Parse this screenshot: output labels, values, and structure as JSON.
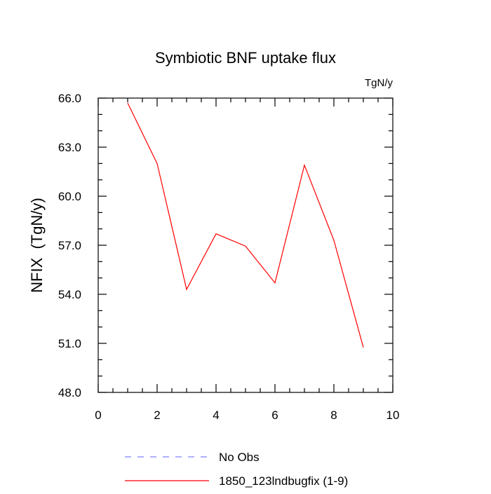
{
  "chart_data": {
    "type": "line",
    "title": "Symbiotic BNF uptake flux",
    "units": "TgN/y",
    "ylabel": "NFIX  (TgN/y)",
    "xlabel": "",
    "xlim": [
      0,
      10
    ],
    "ylim": [
      48,
      66
    ],
    "xticks": [
      0,
      2,
      4,
      6,
      8,
      10
    ],
    "xtick_labels": [
      "0",
      "2",
      "4",
      "6",
      "8",
      "10"
    ],
    "yticks": [
      48,
      51,
      54,
      57,
      60,
      63,
      66
    ],
    "ytick_labels": [
      "48.0",
      "51.0",
      "54.0",
      "57.0",
      "60.0",
      "63.0",
      "66.0"
    ],
    "grid": false,
    "legend_position": "bottom",
    "series": [
      {
        "name": "1850_123lndbugfix (1-9)",
        "color": "#ff0000",
        "style": "solid",
        "x": [
          1,
          2,
          3,
          4,
          5,
          6,
          7,
          8,
          9
        ],
        "y": [
          65.7,
          62.0,
          54.3,
          57.7,
          56.95,
          54.7,
          61.9,
          57.3,
          50.75
        ]
      }
    ],
    "legend": [
      {
        "label": "No Obs",
        "color": "#8080ff",
        "style": "dashed"
      },
      {
        "label": "1850_123lndbugfix (1-9)",
        "color": "#ff0000",
        "style": "solid"
      }
    ]
  }
}
